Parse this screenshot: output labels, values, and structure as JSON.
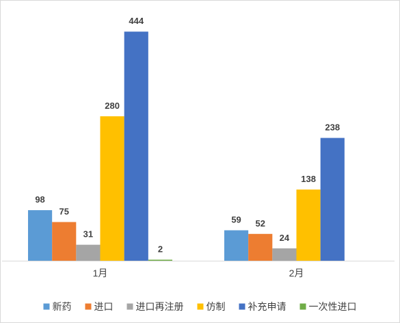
{
  "chart_data": {
    "type": "bar",
    "categories": [
      "1月",
      "2月"
    ],
    "series": [
      {
        "name": "新药",
        "color": "#5B9BD5",
        "values": [
          98,
          59
        ]
      },
      {
        "name": "进口",
        "color": "#ED7D31",
        "values": [
          75,
          52
        ]
      },
      {
        "name": "进口再注册",
        "color": "#A5A5A5",
        "values": [
          31,
          24
        ]
      },
      {
        "name": "仿制",
        "color": "#FFC000",
        "values": [
          280,
          138
        ]
      },
      {
        "name": "补充申请",
        "color": "#4472C4",
        "values": [
          444,
          238
        ]
      },
      {
        "name": "一次性进口",
        "color": "#70AD47",
        "values": [
          2,
          null
        ]
      }
    ],
    "ylim": [
      0,
      500
    ],
    "grid": false,
    "data_labels": true,
    "legend_position": "bottom",
    "axis_color": "#D9D9D9",
    "border_color": "#D9D9D9"
  }
}
